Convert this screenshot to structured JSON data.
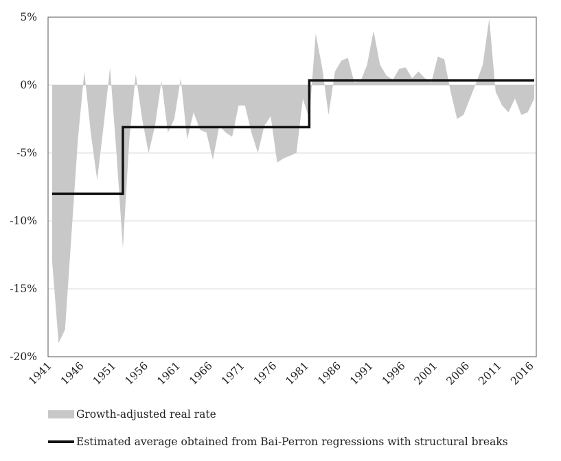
{
  "chart_data": {
    "type": "area",
    "x": [
      1941,
      1942,
      1943,
      1944,
      1945,
      1946,
      1947,
      1948,
      1949,
      1950,
      1951,
      1952,
      1953,
      1954,
      1955,
      1956,
      1957,
      1958,
      1959,
      1960,
      1961,
      1962,
      1963,
      1964,
      1965,
      1966,
      1967,
      1968,
      1969,
      1970,
      1971,
      1972,
      1973,
      1974,
      1975,
      1976,
      1977,
      1978,
      1979,
      1980,
      1981,
      1982,
      1983,
      1984,
      1985,
      1986,
      1987,
      1988,
      1989,
      1990,
      1991,
      1992,
      1993,
      1994,
      1995,
      1996,
      1997,
      1998,
      1999,
      2000,
      2001,
      2002,
      2003,
      2004,
      2005,
      2006,
      2007,
      2008,
      2009,
      2010,
      2011,
      2012,
      2013,
      2014,
      2015,
      2016
    ],
    "series": [
      {
        "name": "Growth-adjusted real rate",
        "type": "area",
        "color": "#c8c8c8",
        "values": [
          -13.0,
          -19.0,
          -18.0,
          -11.0,
          -4.0,
          1.0,
          -3.5,
          -7.0,
          -3.0,
          1.3,
          -5.0,
          -12.0,
          -4.0,
          0.8,
          -2.5,
          -5.0,
          -3.0,
          0.3,
          -3.5,
          -2.5,
          0.5,
          -4.0,
          -2.0,
          -3.3,
          -3.5,
          -5.5,
          -3.0,
          -3.5,
          -3.8,
          -1.5,
          -1.5,
          -3.5,
          -5.0,
          -3.0,
          -2.3,
          -5.7,
          -5.4,
          -5.2,
          -5.0,
          -1.0,
          -2.5,
          3.8,
          1.3,
          -2.2,
          1.0,
          1.8,
          2.0,
          0.2,
          0.3,
          1.5,
          4.0,
          1.5,
          0.7,
          0.4,
          1.2,
          1.3,
          0.5,
          1.0,
          0.5,
          0.2,
          2.1,
          1.9,
          -0.5,
          -2.5,
          -2.2,
          -1.0,
          0.2,
          1.5,
          4.9,
          -0.5,
          -1.5,
          -2.0,
          -1.0,
          -2.2,
          -2.0,
          -1.0
        ]
      },
      {
        "name": "Estimated average obtained from Bai-Perron regressions with structural breaks",
        "type": "line",
        "color": "#111111",
        "segments": [
          {
            "from": 1941,
            "to": 1952,
            "value": -8.0
          },
          {
            "from": 1952,
            "to": 1981,
            "value": -3.1
          },
          {
            "from": 1981,
            "to": 2016,
            "value": 0.35
          }
        ]
      }
    ],
    "xticks": [
      "1941",
      "1946",
      "1951",
      "1956",
      "1961",
      "1966",
      "1971",
      "1976",
      "1981",
      "1986",
      "1991",
      "1996",
      "2001",
      "2006",
      "2011",
      "2016"
    ],
    "yticks": [
      "5%",
      "0%",
      "-5%",
      "-10%",
      "-15%",
      "-20%"
    ],
    "ylim": [
      -20,
      5
    ],
    "xlim": [
      1941,
      2016
    ],
    "grid": "horizontal",
    "legend": "bottom",
    "title": "",
    "xlabel": "",
    "ylabel": ""
  },
  "legend": {
    "area_label": "Growth-adjusted real rate",
    "line_label": "Estimated average obtained from Bai-Perron regressions with structural breaks"
  }
}
